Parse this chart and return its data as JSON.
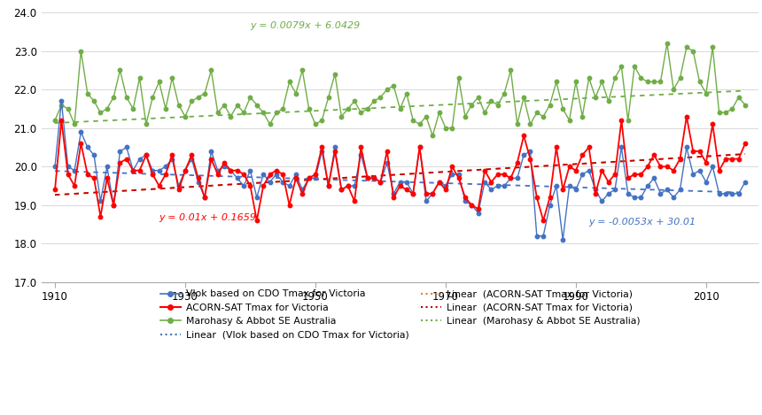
{
  "years": [
    1910,
    1911,
    1912,
    1913,
    1914,
    1915,
    1916,
    1917,
    1918,
    1919,
    1920,
    1921,
    1922,
    1923,
    1924,
    1925,
    1926,
    1927,
    1928,
    1929,
    1930,
    1931,
    1932,
    1933,
    1934,
    1935,
    1936,
    1937,
    1938,
    1939,
    1940,
    1941,
    1942,
    1943,
    1944,
    1945,
    1946,
    1947,
    1948,
    1949,
    1950,
    1951,
    1952,
    1953,
    1954,
    1955,
    1956,
    1957,
    1958,
    1959,
    1960,
    1961,
    1962,
    1963,
    1964,
    1965,
    1966,
    1967,
    1968,
    1969,
    1970,
    1971,
    1972,
    1973,
    1974,
    1975,
    1976,
    1977,
    1978,
    1979,
    1980,
    1981,
    1982,
    1983,
    1984,
    1985,
    1986,
    1987,
    1988,
    1989,
    1990,
    1991,
    1992,
    1993,
    1994,
    1995,
    1996,
    1997,
    1998,
    1999,
    2000,
    2001,
    2002,
    2003,
    2004,
    2005,
    2006,
    2007,
    2008,
    2009,
    2010,
    2011,
    2012,
    2013,
    2014,
    2015,
    2016
  ],
  "vlok": [
    20.0,
    21.7,
    20.0,
    19.9,
    20.9,
    20.5,
    20.3,
    19.1,
    20.0,
    19.0,
    20.4,
    20.5,
    19.9,
    20.2,
    20.3,
    19.9,
    19.9,
    20.0,
    20.2,
    19.5,
    19.9,
    20.2,
    19.6,
    19.2,
    20.4,
    19.9,
    20.0,
    19.9,
    19.7,
    19.5,
    19.9,
    19.2,
    19.8,
    19.6,
    19.8,
    19.6,
    19.5,
    19.8,
    19.4,
    19.7,
    19.7,
    20.4,
    19.5,
    20.5,
    19.4,
    19.5,
    19.5,
    20.3,
    19.7,
    19.7,
    19.6,
    20.1,
    19.3,
    19.6,
    19.6,
    19.3,
    20.5,
    19.1,
    19.3,
    19.6,
    19.5,
    19.8,
    19.8,
    19.1,
    19.0,
    18.8,
    19.6,
    19.4,
    19.5,
    19.5,
    19.7,
    19.7,
    20.3,
    20.4,
    18.2,
    18.2,
    19.0,
    19.5,
    18.1,
    19.5,
    19.4,
    19.8,
    19.9,
    19.4,
    19.1,
    19.3,
    19.4,
    20.5,
    19.3,
    19.2,
    19.2,
    19.5,
    19.7,
    19.3,
    19.4,
    19.2,
    19.4,
    20.5,
    19.8,
    19.9,
    19.6,
    20.0,
    19.3,
    19.3,
    19.3,
    19.3,
    19.6
  ],
  "acorn": [
    19.4,
    21.2,
    19.8,
    19.5,
    20.6,
    19.8,
    19.7,
    18.7,
    19.7,
    19.0,
    20.1,
    20.2,
    19.9,
    19.9,
    20.3,
    19.8,
    19.5,
    19.8,
    20.3,
    19.4,
    19.9,
    20.3,
    19.7,
    19.2,
    20.2,
    19.8,
    20.1,
    19.9,
    19.9,
    19.8,
    19.5,
    18.6,
    19.5,
    19.8,
    19.9,
    19.8,
    19.0,
    19.7,
    19.3,
    19.7,
    19.8,
    20.5,
    19.5,
    20.4,
    19.4,
    19.5,
    19.1,
    20.5,
    19.7,
    19.7,
    19.6,
    20.4,
    19.2,
    19.5,
    19.4,
    19.3,
    20.5,
    19.3,
    19.3,
    19.6,
    19.4,
    20.0,
    19.7,
    19.2,
    19.0,
    18.9,
    19.9,
    19.6,
    19.8,
    19.8,
    19.7,
    20.1,
    20.8,
    20.2,
    19.2,
    18.6,
    19.2,
    20.5,
    19.4,
    20.0,
    19.9,
    20.3,
    20.5,
    19.3,
    19.9,
    19.6,
    19.8,
    21.2,
    19.7,
    19.8,
    19.8,
    20.0,
    20.3,
    20.0,
    20.0,
    19.9,
    20.2,
    21.3,
    20.4,
    20.4,
    20.1,
    21.1,
    19.9,
    20.2,
    20.2,
    20.2,
    20.6
  ],
  "marohasy": [
    21.2,
    21.6,
    21.5,
    21.1,
    23.0,
    21.9,
    21.7,
    21.4,
    21.5,
    21.8,
    22.5,
    21.8,
    21.5,
    22.3,
    21.1,
    21.8,
    22.2,
    21.5,
    22.3,
    21.6,
    21.3,
    21.7,
    21.8,
    21.9,
    22.5,
    21.4,
    21.6,
    21.3,
    21.6,
    21.4,
    21.8,
    21.6,
    21.4,
    21.1,
    21.4,
    21.5,
    22.2,
    21.9,
    22.5,
    21.5,
    21.1,
    21.2,
    21.8,
    22.4,
    21.3,
    21.5,
    21.7,
    21.4,
    21.5,
    21.7,
    21.8,
    22.0,
    22.1,
    21.5,
    21.9,
    21.2,
    21.1,
    21.3,
    20.8,
    21.4,
    21.0,
    21.0,
    22.3,
    21.3,
    21.6,
    21.8,
    21.4,
    21.7,
    21.6,
    21.9,
    22.5,
    21.1,
    21.8,
    21.1,
    21.4,
    21.3,
    21.6,
    22.2,
    21.5,
    21.2,
    22.2,
    21.3,
    22.3,
    21.8,
    22.2,
    21.7,
    22.3,
    22.6,
    21.2,
    22.6,
    22.3,
    22.2,
    22.2,
    22.2,
    23.2,
    22.0,
    22.3,
    23.1,
    23.0,
    22.2,
    21.9,
    23.1,
    21.4,
    21.4,
    21.5,
    21.8,
    21.6
  ],
  "vlok_slope": -0.0053,
  "vlok_intercept": 30.01,
  "acorn_slope": 0.01,
  "acorn_intercept": 0.1659,
  "marohasy_slope": 0.0079,
  "marohasy_intercept": 6.0429,
  "line_color_blue": "#4472C4",
  "line_color_red": "#FF0000",
  "line_color_green": "#70AD47",
  "trend_color_blue": "#4472C4",
  "trend_color_orange": "#ED7D31",
  "trend_color_red": "#C00000",
  "trend_color_green": "#70AD47",
  "bg_color": "#FFFFFF",
  "grid_color": "#D9D9D9",
  "ylim": [
    17.0,
    24.0
  ],
  "yticks": [
    17.0,
    18.0,
    19.0,
    20.0,
    21.0,
    22.0,
    23.0,
    24.0
  ],
  "xticks": [
    1910,
    1930,
    1950,
    1970,
    1990,
    2010
  ],
  "green_eq": "y = 0.0079x + 6.0429",
  "red_eq": "y = 0.01x + 0.1659",
  "blue_eq": "y = -0.0053x + 30.01",
  "green_eq_x": 1940,
  "green_eq_y": 23.55,
  "red_eq_x": 1926,
  "red_eq_y": 18.55,
  "blue_eq_x": 1992,
  "blue_eq_y": 18.45,
  "xlim_left": 1908,
  "xlim_right": 2018
}
